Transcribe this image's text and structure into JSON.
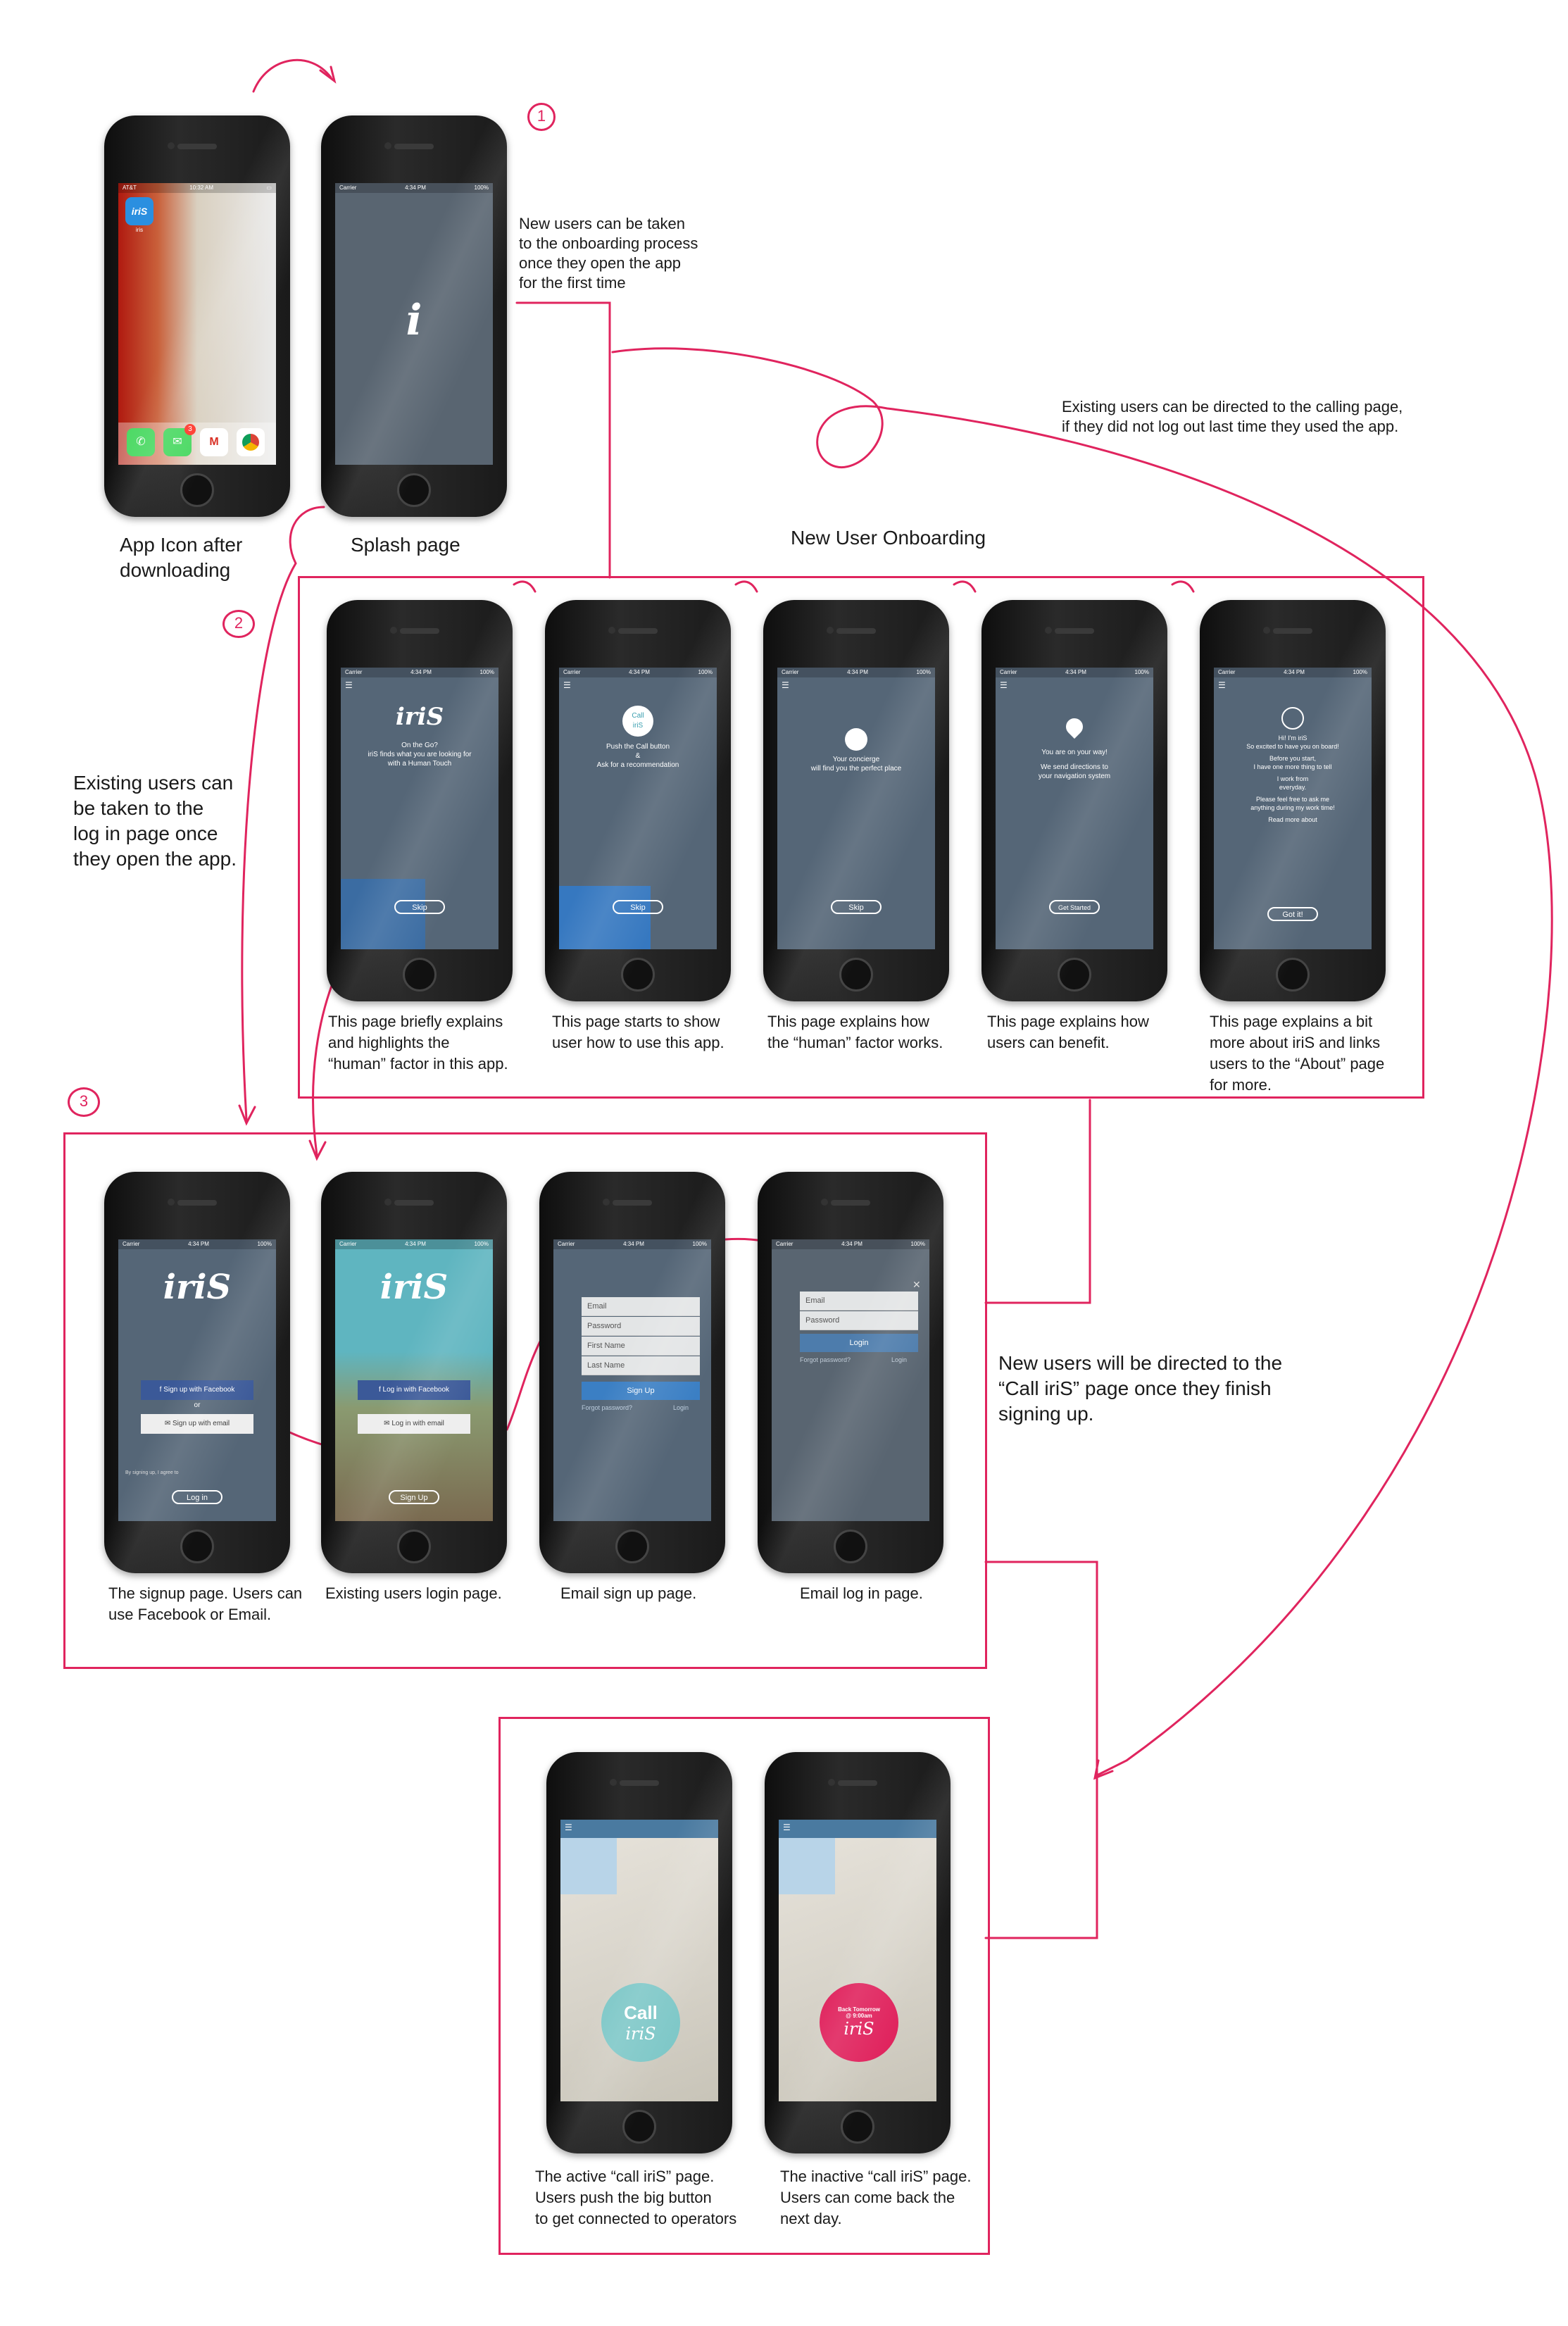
{
  "top": {
    "note_new_users": [
      "New users can be taken",
      "to the onboarding process",
      "once they open the app",
      "for the first time"
    ],
    "note_existing_calling": [
      "Existing users can be directed to the calling page,",
      "if they did not log out last time they used the app."
    ],
    "label_app_icon": [
      "App Icon after",
      "downloading"
    ],
    "label_splash": "Splash page",
    "step1": "1",
    "step2": "2",
    "step3": "3",
    "onboarding_title": "New User Onboarding",
    "note_existing_login": [
      "Existing users can",
      "be taken to the",
      "log in page once",
      "they open the app."
    ]
  },
  "homescreen": {
    "app_name": "iris",
    "carrier": "AT&T",
    "time": "10:32 AM",
    "badge": "3",
    "dock_icons": [
      "phone-icon",
      "messages-icon",
      "gmail-icon",
      "chrome-icon"
    ]
  },
  "status": {
    "carrier": "Carrier",
    "time": "4:34 PM",
    "battery": "100%"
  },
  "onboarding": [
    {
      "lines": [
        "On the Go?",
        "iriS finds what you are looking for",
        "with a Human Touch"
      ],
      "button": "Skip",
      "caption": [
        "This page briefly explains",
        "and highlights the",
        "“human” factor in this app."
      ]
    },
    {
      "lines": [
        "Push the Call button",
        "&",
        "Ask for a recommendation"
      ],
      "button": "Skip",
      "caption": [
        "This page starts to show",
        "user how to use this app."
      ],
      "icon_text": [
        "Call",
        "iriS"
      ]
    },
    {
      "lines": [
        "Your concierge",
        "will find you the perfect place"
      ],
      "button": "Skip",
      "caption": [
        "This page explains how",
        "the “human” factor works."
      ]
    },
    {
      "lines": [
        "You are on your way!",
        "We send directions to",
        "your navigation system"
      ],
      "button": "Get Started",
      "caption": [
        "This page explains how",
        "users can benefit."
      ]
    },
    {
      "lines": [
        "Hi! I'm iriS",
        "So excited to have you on board!",
        "Before you start,",
        "I have one more thing to tell",
        "I work from",
        "everyday.",
        "Please feel free to ask me",
        "anything during my work time!",
        "Read more about"
      ],
      "button": "Got it!",
      "caption": [
        "This page explains a bit",
        "more about iriS and links",
        "users to the “About” page",
        "for more."
      ]
    }
  ],
  "signup": {
    "logo": "iriS",
    "fb_signup": "Sign up with Facebook",
    "or": "or",
    "email_signup": "Sign up with email",
    "agree": "By signing up, I agree to",
    "login": "Log in",
    "fb_login": "Log in with Facebook",
    "email_login": "Log in with email",
    "signup_btn": "Sign Up",
    "caption_signup": [
      "The signup page. Users can",
      "use Facebook or Email."
    ],
    "caption_login": "Existing users login page."
  },
  "email_forms": {
    "fields_signup": [
      "Email",
      "Password",
      "First Name",
      "Last Name"
    ],
    "signup_button": "Sign Up",
    "forgot": "Forgot password?",
    "login_link": "Login",
    "fields_login": [
      "Email",
      "Password"
    ],
    "login_button": "Login",
    "caption_signup": "Email sign up page.",
    "caption_login": "Email log in page."
  },
  "note_new_directed": [
    "New users will be directed to the",
    "“Call iriS” page once they finish",
    "signing up."
  ],
  "call": {
    "active_text": [
      "Call",
      "iriS"
    ],
    "inactive_text": [
      "Back Tomorrow",
      "@ 9:00am",
      "iriS"
    ],
    "caption_active": [
      "The active “call iriS” page.",
      "Users push the big button",
      "to get connected to operators"
    ],
    "caption_inactive": [
      "The inactive “call iriS” page.",
      "Users can come back the",
      "next day."
    ]
  },
  "colors": {
    "accent": "#e0245e",
    "facebook": "#3b5998",
    "active_call": "#7fc8c8",
    "inactive_call": "#e0245e"
  }
}
